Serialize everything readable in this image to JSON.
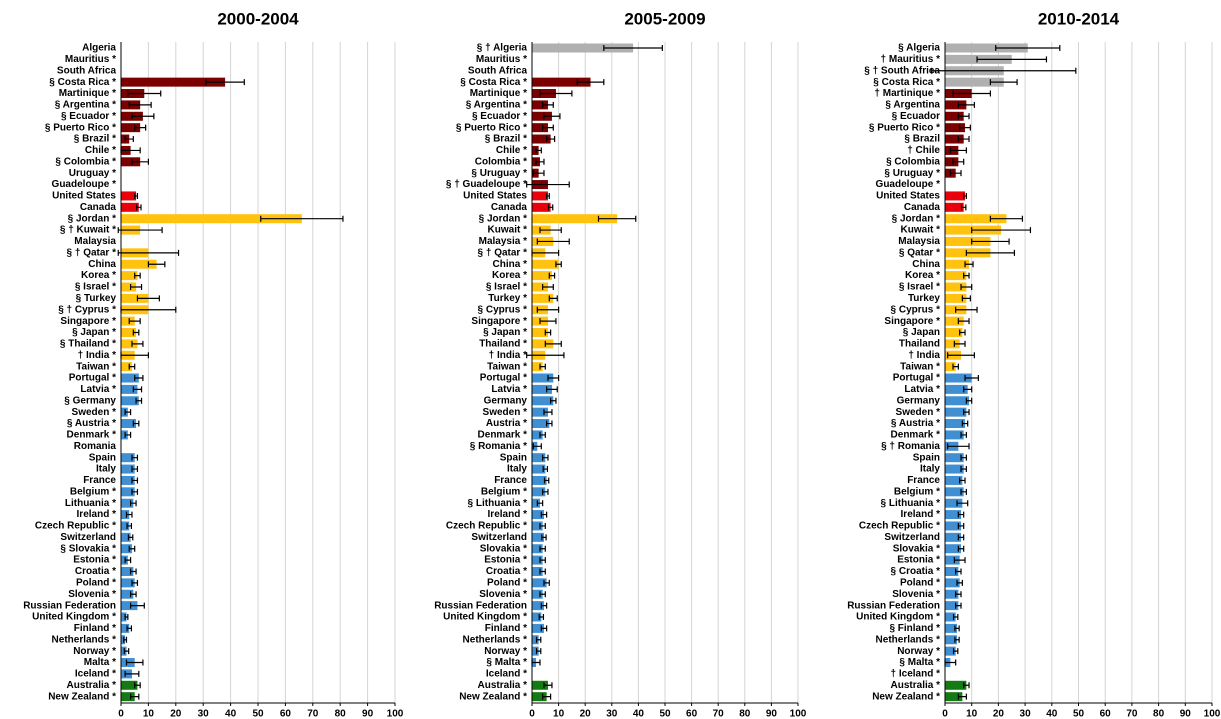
{
  "chart_data": [
    {
      "type": "barh",
      "title": "2000-2004",
      "xlim": [
        0,
        100
      ],
      "xticks": [
        0,
        10,
        20,
        30,
        40,
        50,
        60,
        70,
        80,
        90,
        100
      ],
      "grid": true,
      "categories": [
        "Algeria",
        "Mauritius *",
        "South Africa",
        "§ Costa Rica *",
        "Martinique *",
        "§ Argentina *",
        "§ Ecuador *",
        "§ Puerto Rico *",
        "§ Brazil *",
        "Chile *",
        "§ Colombia *",
        "Uruguay *",
        "Guadeloupe *",
        "United States",
        "Canada",
        "§ Jordan *",
        "§ † Kuwait *",
        "Malaysia",
        "§ † Qatar *",
        "China",
        "Korea *",
        "§ Israel *",
        "§ Turkey",
        "§ † Cyprus *",
        "Singapore *",
        "§ Japan *",
        "§ Thailand *",
        "† India *",
        "Taiwan *",
        "Portugal *",
        "Latvia *",
        "§ Germany",
        "Sweden *",
        "§ Austria *",
        "Denmark *",
        "Romania",
        "Spain",
        "Italy",
        "France",
        "Belgium *",
        "Lithuania *",
        "Ireland *",
        "Czech Republic *",
        "Switzerland",
        "§ Slovakia *",
        "Estonia *",
        "Croatia *",
        "Poland *",
        "Slovenia *",
        "Russian Federation",
        "United Kingdom *",
        "Finland *",
        "Netherlands *",
        "Norway *",
        "Malta *",
        "Iceland *",
        "Australia *",
        "New Zealand *"
      ],
      "values": [
        null,
        null,
        null,
        38,
        8.5,
        7,
        8,
        7,
        3,
        3.5,
        7,
        null,
        null,
        5.5,
        6.5,
        66,
        7,
        null,
        10,
        13,
        6,
        5.5,
        10,
        10,
        5,
        5.5,
        6,
        5,
        4,
        6.5,
        6,
        6.5,
        2.5,
        5.5,
        2.5,
        null,
        5,
        5,
        5,
        5,
        4.5,
        3,
        3,
        3.5,
        4,
        2.5,
        4.5,
        5,
        4.5,
        6,
        2,
        3,
        1.5,
        2,
        5,
        4,
        6,
        5
      ],
      "errors": [
        null,
        null,
        null,
        7,
        6,
        4,
        4,
        2,
        1.5,
        3.5,
        3,
        null,
        null,
        0.5,
        0.8,
        15,
        8,
        null,
        11,
        3,
        1,
        2,
        4,
        10,
        2,
        1,
        2,
        5,
        1,
        1.5,
        1.5,
        1,
        1,
        1,
        1,
        null,
        1,
        1,
        1,
        1,
        1,
        1,
        0.8,
        0.8,
        1,
        1,
        1,
        1,
        1,
        2.5,
        0.5,
        0.8,
        0.5,
        0.8,
        3,
        2.5,
        1,
        1.5
      ],
      "colors": [
        "#7b0000",
        "#7b0000",
        "#7b0000",
        "#7b0000",
        "#7b0000",
        "#7b0000",
        "#7b0000",
        "#7b0000",
        "#7b0000",
        "#7b0000",
        "#7b0000",
        "#7b0000",
        "#7b0000",
        "#e8000a",
        "#e8000a",
        "#ffc20e",
        "#ffc20e",
        "#ffc20e",
        "#ffc20e",
        "#ffc20e",
        "#ffc20e",
        "#ffc20e",
        "#ffc20e",
        "#ffc20e",
        "#ffc20e",
        "#ffc20e",
        "#ffc20e",
        "#ffc20e",
        "#ffc20e",
        "#3f8fd2",
        "#3f8fd2",
        "#3f8fd2",
        "#3f8fd2",
        "#3f8fd2",
        "#3f8fd2",
        "#3f8fd2",
        "#3f8fd2",
        "#3f8fd2",
        "#3f8fd2",
        "#3f8fd2",
        "#3f8fd2",
        "#3f8fd2",
        "#3f8fd2",
        "#3f8fd2",
        "#3f8fd2",
        "#3f8fd2",
        "#3f8fd2",
        "#3f8fd2",
        "#3f8fd2",
        "#3f8fd2",
        "#3f8fd2",
        "#3f8fd2",
        "#3f8fd2",
        "#3f8fd2",
        "#3f8fd2",
        "#3f8fd2",
        "#147a14",
        "#147a14"
      ]
    },
    {
      "type": "barh",
      "title": "2005-2009",
      "xlim": [
        0,
        100
      ],
      "xticks": [
        0,
        10,
        20,
        30,
        40,
        50,
        60,
        70,
        80,
        90,
        100
      ],
      "grid": true,
      "categories": [
        "§ † Algeria",
        "Mauritius *",
        "South Africa",
        "§ Costa Rica *",
        "Martinique *",
        "§ Argentina *",
        "§ Ecuador *",
        "§ Puerto Rico *",
        "§ Brazil *",
        "Chile *",
        "Colombia *",
        "§ Uruguay *",
        "§ † Guadeloupe *",
        "United States",
        "Canada",
        "§ Jordan *",
        "Kuwait *",
        "Malaysia *",
        "§ † Qatar *",
        "China *",
        "Korea *",
        "§ Israel *",
        "Turkey *",
        "§ Cyprus *",
        "Singapore *",
        "§ Japan *",
        "Thailand *",
        "† India *",
        "Taiwan *",
        "Portugal *",
        "Latvia *",
        "Germany",
        "Sweden *",
        "Austria *",
        "Denmark *",
        "§ Romania *",
        "Spain",
        "Italy",
        "France",
        "Belgium *",
        "§ Lithuania *",
        "Ireland *",
        "Czech Republic *",
        "Switzerland",
        "Slovakia *",
        "Estonia *",
        "Croatia *",
        "Poland *",
        "Slovenia *",
        "Russian Federation",
        "United Kingdom *",
        "Finland *",
        "Netherlands *",
        "Norway *",
        "§ Malta *",
        "Iceland *",
        "Australia *",
        "New Zealand *"
      ],
      "values": [
        38,
        null,
        null,
        22,
        9,
        6,
        7.5,
        6,
        7,
        2.5,
        3,
        2.5,
        6,
        6,
        7,
        32,
        7,
        8,
        5,
        10,
        7.5,
        6,
        8,
        6,
        6,
        6,
        8,
        5,
        4,
        8,
        7.5,
        8,
        6,
        6.5,
        4,
        2,
        5,
        5,
        5.5,
        5,
        3,
        4.5,
        4,
        4.5,
        4,
        4,
        4,
        5.5,
        4,
        4.5,
        3.5,
        4.5,
        2.5,
        2.5,
        1.5,
        null,
        6,
        5.5
      ],
      "errors": [
        11,
        null,
        null,
        5,
        6,
        2,
        3,
        2,
        1.5,
        1,
        1.5,
        2,
        8,
        0.5,
        0.8,
        7,
        4,
        6,
        5,
        1,
        1,
        2,
        1.5,
        4,
        3,
        1,
        3,
        7,
        1,
        2,
        2,
        1,
        1.5,
        1,
        1,
        1.5,
        1,
        0.8,
        0.8,
        1,
        1,
        1,
        1,
        0.8,
        1,
        1,
        1,
        1,
        1,
        1,
        0.8,
        1,
        0.8,
        0.8,
        1.5,
        null,
        1.5,
        1.5
      ],
      "colors": [
        "#b0b0b0",
        "#7b0000",
        "#7b0000",
        "#7b0000",
        "#7b0000",
        "#7b0000",
        "#7b0000",
        "#7b0000",
        "#7b0000",
        "#7b0000",
        "#7b0000",
        "#7b0000",
        "#7b0000",
        "#e8000a",
        "#e8000a",
        "#ffc20e",
        "#ffc20e",
        "#ffc20e",
        "#ffc20e",
        "#ffc20e",
        "#ffc20e",
        "#ffc20e",
        "#ffc20e",
        "#ffc20e",
        "#ffc20e",
        "#ffc20e",
        "#ffc20e",
        "#ffc20e",
        "#ffc20e",
        "#3f8fd2",
        "#3f8fd2",
        "#3f8fd2",
        "#3f8fd2",
        "#3f8fd2",
        "#3f8fd2",
        "#3f8fd2",
        "#3f8fd2",
        "#3f8fd2",
        "#3f8fd2",
        "#3f8fd2",
        "#3f8fd2",
        "#3f8fd2",
        "#3f8fd2",
        "#3f8fd2",
        "#3f8fd2",
        "#3f8fd2",
        "#3f8fd2",
        "#3f8fd2",
        "#3f8fd2",
        "#3f8fd2",
        "#3f8fd2",
        "#3f8fd2",
        "#3f8fd2",
        "#3f8fd2",
        "#3f8fd2",
        "#3f8fd2",
        "#147a14",
        "#147a14"
      ]
    },
    {
      "type": "barh",
      "title": "2010-2014",
      "xlim": [
        0,
        100
      ],
      "xticks": [
        0,
        10,
        20,
        30,
        40,
        50,
        60,
        70,
        80,
        90,
        100
      ],
      "grid": true,
      "categories": [
        "§ Algeria",
        "† Mauritius *",
        "§ † South Africa",
        "§ Costa Rica *",
        "† Martinique *",
        "§ Argentina",
        "§ Ecuador",
        "§ Puerto Rico *",
        "§ Brazil",
        "† Chile",
        "§ Colombia",
        "§ Uruguay *",
        "Guadeloupe *",
        "United States",
        "Canada",
        "§ Jordan *",
        "Kuwait *",
        "Malaysia",
        "§ Qatar *",
        "China",
        "Korea *",
        "§ Israel *",
        "Turkey",
        "§ Cyprus *",
        "Singapore *",
        "§ Japan",
        "Thailand",
        "† India",
        "Taiwan *",
        "Portugal *",
        "Latvia *",
        "Germany",
        "Sweden *",
        "§ Austria *",
        "Denmark *",
        "§ † Romania",
        "Spain",
        "Italy",
        "France",
        "Belgium *",
        "§ Lithuania *",
        "Ireland *",
        "Czech Republic *",
        "Switzerland",
        "Slovakia *",
        "Estonia *",
        "§ Croatia *",
        "Poland *",
        "Slovenia *",
        "Russian Federation",
        "United Kingdom *",
        "§ Finland *",
        "Netherlands *",
        "Norway *",
        "§ Malta *",
        "† Iceland *",
        "Australia *",
        "New Zealand *"
      ],
      "values": [
        31,
        25,
        22,
        22,
        10,
        8,
        7,
        7.5,
        7,
        5,
        5,
        4,
        null,
        7.5,
        7,
        23,
        21,
        17,
        17,
        9,
        8,
        8,
        8,
        8,
        7,
        6.5,
        5.5,
        6,
        4,
        10,
        8.5,
        9,
        8,
        7.5,
        7,
        5,
        7,
        7,
        6.5,
        7,
        6.5,
        6,
        6,
        6,
        6,
        5.5,
        5,
        5.5,
        5,
        5,
        4,
        4.5,
        4.5,
        4,
        2,
        null,
        8,
        6.5
      ],
      "errors": [
        12,
        13,
        27,
        5,
        7,
        3,
        2,
        2,
        2,
        3,
        2,
        2,
        null,
        0.5,
        0.8,
        6,
        11,
        7,
        9,
        1.5,
        1,
        2,
        1.5,
        4,
        2,
        1,
        2,
        5,
        1,
        2.5,
        1.5,
        1,
        1,
        1,
        1,
        4,
        1,
        1,
        1,
        1,
        2,
        1,
        1,
        1,
        1,
        2,
        1,
        1,
        1,
        1,
        0.8,
        0.8,
        0.8,
        0.8,
        2,
        null,
        1,
        1.5
      ],
      "colors": [
        "#b0b0b0",
        "#b0b0b0",
        "#b0b0b0",
        "#b0b0b0",
        "#7b0000",
        "#7b0000",
        "#7b0000",
        "#7b0000",
        "#7b0000",
        "#7b0000",
        "#7b0000",
        "#7b0000",
        "#7b0000",
        "#e8000a",
        "#e8000a",
        "#ffc20e",
        "#ffc20e",
        "#ffc20e",
        "#ffc20e",
        "#ffc20e",
        "#ffc20e",
        "#ffc20e",
        "#ffc20e",
        "#ffc20e",
        "#ffc20e",
        "#ffc20e",
        "#ffc20e",
        "#ffc20e",
        "#ffc20e",
        "#3f8fd2",
        "#3f8fd2",
        "#3f8fd2",
        "#3f8fd2",
        "#3f8fd2",
        "#3f8fd2",
        "#3f8fd2",
        "#3f8fd2",
        "#3f8fd2",
        "#3f8fd2",
        "#3f8fd2",
        "#3f8fd2",
        "#3f8fd2",
        "#3f8fd2",
        "#3f8fd2",
        "#3f8fd2",
        "#3f8fd2",
        "#3f8fd2",
        "#3f8fd2",
        "#3f8fd2",
        "#3f8fd2",
        "#3f8fd2",
        "#3f8fd2",
        "#3f8fd2",
        "#3f8fd2",
        "#3f8fd2",
        "#3f8fd2",
        "#147a14",
        "#147a14"
      ]
    }
  ]
}
